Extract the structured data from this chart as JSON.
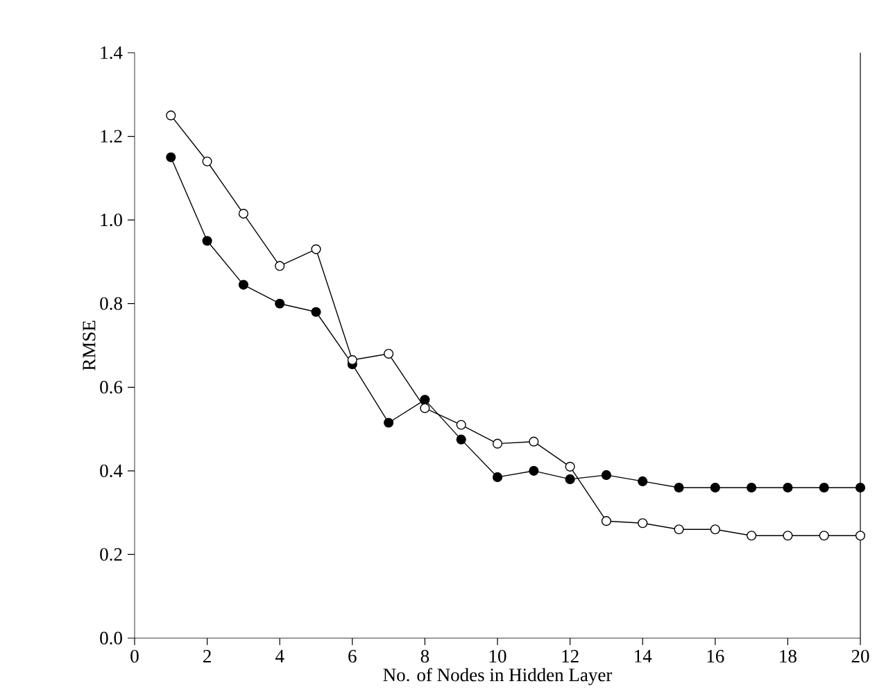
{
  "chart_data": {
    "type": "line",
    "xlabel": "No. of Nodes in Hidden Layer",
    "ylabel": "RMSE",
    "x": [
      1,
      2,
      3,
      4,
      5,
      6,
      7,
      8,
      9,
      10,
      11,
      12,
      13,
      14,
      15,
      16,
      17,
      18,
      19,
      20
    ],
    "series": [
      {
        "color": "#000000",
        "values": [
          1.15,
          0.95,
          0.845,
          0.8,
          0.78,
          0.655,
          0.515,
          0.57,
          0.475,
          0.385,
          0.4,
          0.38,
          0.39,
          0.375,
          0.36,
          0.36,
          0.36,
          0.36,
          0.36,
          0.36
        ]
      },
      {
        "color": "#ffffff",
        "values": [
          1.25,
          1.14,
          1.015,
          0.89,
          0.93,
          0.665,
          0.68,
          0.55,
          0.51,
          0.465,
          0.47,
          0.41,
          0.28,
          0.275,
          0.26,
          0.26,
          0.245,
          0.245,
          0.245,
          0.245
        ]
      }
    ],
    "marker": "circle",
    "line_style": "solid",
    "grid": false,
    "xlim": [
      0,
      20
    ],
    "xticks": [
      0,
      2,
      4,
      6,
      8,
      10,
      12,
      14,
      16,
      18,
      20
    ],
    "ylim": [
      0,
      1.4
    ],
    "yticks": [
      {
        "value": 0,
        "label": "0.0"
      },
      {
        "value": 0.2,
        "label": "0.2"
      },
      {
        "value": 0.4,
        "label": "0.4"
      },
      {
        "value": 0.6,
        "label": "0.6"
      },
      {
        "value": 0.8,
        "label": "0.8"
      },
      {
        "value": 1.0,
        "label": "1.0"
      },
      {
        "value": 1.2,
        "label": "1.2"
      },
      {
        "value": 1.4,
        "label": "1.4"
      }
    ]
  }
}
